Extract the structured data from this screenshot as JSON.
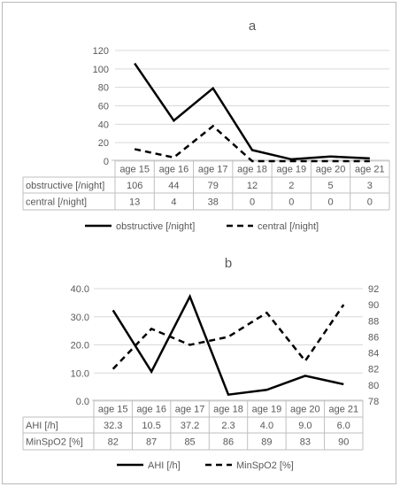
{
  "chart_data": [
    {
      "type": "line",
      "title": "a",
      "categories": [
        "age 15",
        "age 16",
        "age 17",
        "age 18",
        "age 19",
        "age 20",
        "age 21"
      ],
      "ylim": [
        0,
        120
      ],
      "yticks": [
        "0",
        "20",
        "40",
        "60",
        "80",
        "100",
        "120"
      ],
      "grid": true,
      "legend_position": "bottom",
      "series": [
        {
          "name": "obstructive [/night]",
          "values": [
            106,
            44,
            79,
            12,
            2,
            5,
            3
          ],
          "labels": [
            "106",
            "44",
            "79",
            "12",
            "2",
            "5",
            "3"
          ],
          "style": "solid",
          "color": "#000000"
        },
        {
          "name": "central [/night]",
          "values": [
            13,
            4,
            38,
            0,
            0,
            0,
            0
          ],
          "labels": [
            "13",
            "4",
            "38",
            "0",
            "0",
            "0",
            "0"
          ],
          "style": "dashed",
          "color": "#000000"
        }
      ]
    },
    {
      "type": "line",
      "title": "b",
      "categories": [
        "age 15",
        "age 16",
        "age 17",
        "age 18",
        "age 19",
        "age 20",
        "age 21"
      ],
      "ylim": [
        0,
        40
      ],
      "yticks": [
        "0.0",
        "10.0",
        "20.0",
        "30.0",
        "40.0"
      ],
      "y2lim": [
        78,
        92
      ],
      "y2ticks": [
        "78",
        "80",
        "82",
        "84",
        "86",
        "88",
        "90",
        "92"
      ],
      "grid": true,
      "legend_position": "bottom",
      "series": [
        {
          "name": "AHI [/h]",
          "values": [
            32.3,
            10.5,
            37.2,
            2.3,
            4.0,
            9.0,
            6.0
          ],
          "labels": [
            "32.3",
            "10.5",
            "37.2",
            "2.3",
            "4.0",
            "9.0",
            "6.0"
          ],
          "style": "solid",
          "axis": "left",
          "color": "#000000"
        },
        {
          "name": "MinSpO2 [%]",
          "values": [
            82,
            87,
            85,
            86,
            89,
            83,
            90
          ],
          "labels": [
            "82",
            "87",
            "85",
            "86",
            "89",
            "83",
            "90"
          ],
          "style": "dashed",
          "axis": "right",
          "color": "#000000"
        }
      ]
    }
  ]
}
